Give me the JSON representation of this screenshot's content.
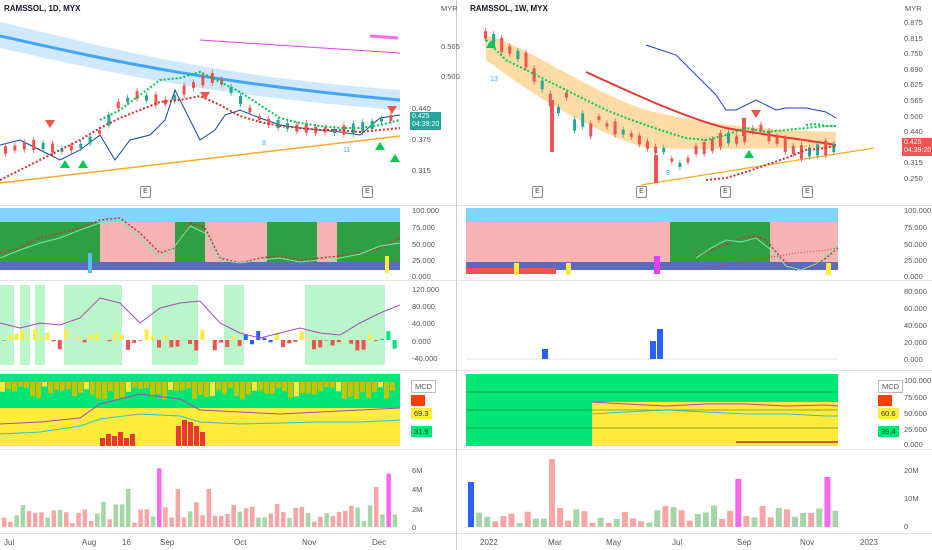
{
  "left": {
    "title": "RAMSSOL, 1D, MYX",
    "price_ticks": [
      "0.440",
      "0.375",
      "0.315"
    ],
    "price_label": "0.425",
    "price_time": "04:39:20",
    "osc_ticks": [
      "100.000",
      "75.000",
      "50.000",
      "25.000",
      "0.000"
    ],
    "mid_ticks": [
      "120.000",
      "80.000",
      "40.000",
      "0.000",
      "-40.000"
    ],
    "mcd_ticks": [
      "100.000",
      "75.000",
      "50.000",
      "25.000",
      "0.000"
    ],
    "mcd_label": "MCD",
    "mcd_values": [
      "69.3",
      "31.9"
    ],
    "vol_ticks": [
      "6M",
      "4M",
      "2M",
      "0"
    ],
    "dates": [
      "Jul",
      "Aug",
      "16",
      "Sep",
      "Oct",
      "Nov",
      "Dec"
    ],
    "e_badge": "E",
    "signals": [
      "8",
      "11"
    ]
  },
  "right": {
    "title": "RAMSSOL, 1W, MYX",
    "currency": "MYR",
    "price_top_ticks": [
      "0.565",
      "0.500"
    ],
    "price_ticks": [
      "0.875",
      "0.815",
      "0.750",
      "0.690",
      "0.625",
      "0.565",
      "0.500",
      "0.440",
      "0.375",
      "0.315",
      "0.250"
    ],
    "price_label": "0.425",
    "price_time": "04:39:20",
    "osc_ticks": [
      "100.000",
      "75.000",
      "50.000",
      "25.000",
      "0.000"
    ],
    "mid_ticks": [
      "80.000",
      "60.000",
      "40.000",
      "20.000",
      "0.000"
    ],
    "mcd_ticks": [
      "100.000",
      "75.000",
      "50.000",
      "25.000",
      "0.000"
    ],
    "mcd_label": "MCD",
    "mcd_values": [
      "60.6",
      "39.4"
    ],
    "vol_ticks": [
      "20M",
      "10M",
      "0"
    ],
    "dates": [
      "2022",
      "Mar",
      "May",
      "Jul",
      "Sep",
      "Nov",
      "2023"
    ],
    "e_badge": "E",
    "signals": [
      "13",
      "8"
    ]
  },
  "colors": {
    "up": "#26a69a",
    "down": "#ef5350",
    "green_zone": "#2ea043",
    "pink_zone": "#f8b4b4",
    "yellow": "#ffeb3b",
    "lightgreen": "#b9f6ca",
    "blue": "#2962ff",
    "magenta": "#ff66ee"
  }
}
